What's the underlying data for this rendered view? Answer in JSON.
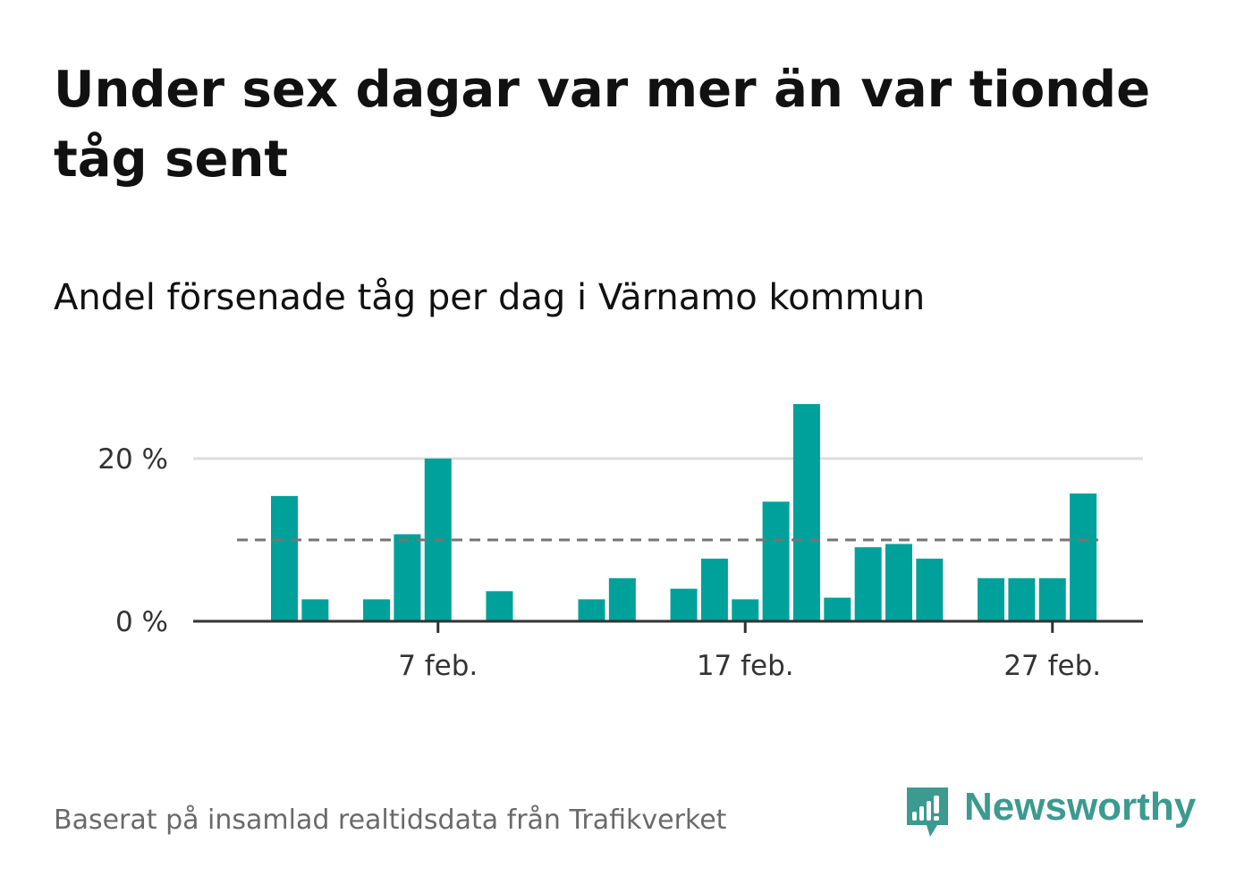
{
  "title": "Under sex dagar var mer än var tionde tåg sent",
  "subtitle": "Andel försenade tåg per dag i Värnamo kommun",
  "source": "Baserat på insamlad realtidsdata från Trafikverket",
  "brand": {
    "name": "Newsworthy",
    "icon": "newsworthy-logo-icon",
    "color": "#3c9a8f"
  },
  "colors": {
    "bar": "#00a19a",
    "reference_line": "#757575",
    "grid": "#dddddd",
    "axis": "#333333"
  },
  "chart_data": {
    "type": "bar",
    "x": [
      "2 feb.",
      "3 feb.",
      "4 feb.",
      "5 feb.",
      "6 feb.",
      "7 feb.",
      "8 feb.",
      "9 feb.",
      "10 feb.",
      "11 feb.",
      "12 feb.",
      "13 feb.",
      "14 feb.",
      "15 feb.",
      "16 feb.",
      "17 feb.",
      "18 feb.",
      "19 feb.",
      "20 feb.",
      "21 feb.",
      "22 feb.",
      "23 feb.",
      "24 feb.",
      "25 feb.",
      "26 feb.",
      "27 feb.",
      "28 feb."
    ],
    "values": [
      15.4,
      2.7,
      null,
      2.7,
      10.7,
      20.0,
      null,
      3.7,
      null,
      null,
      2.7,
      5.3,
      null,
      4.0,
      7.7,
      2.7,
      14.7,
      26.7,
      2.9,
      9.1,
      9.5,
      7.7,
      null,
      5.3,
      5.3,
      5.3,
      15.7
    ],
    "reference_line": 10,
    "ylim": [
      0,
      28
    ],
    "yticks": [
      {
        "value": 0,
        "label": "0 %"
      },
      {
        "value": 20,
        "label": "20 %"
      }
    ],
    "xticks": [
      {
        "x": "7 feb.",
        "label": "7 feb."
      },
      {
        "x": "17 feb.",
        "label": "17 feb."
      },
      {
        "x": "27 feb.",
        "label": "27 feb."
      }
    ],
    "grid": "horizontal",
    "legend": "none"
  }
}
